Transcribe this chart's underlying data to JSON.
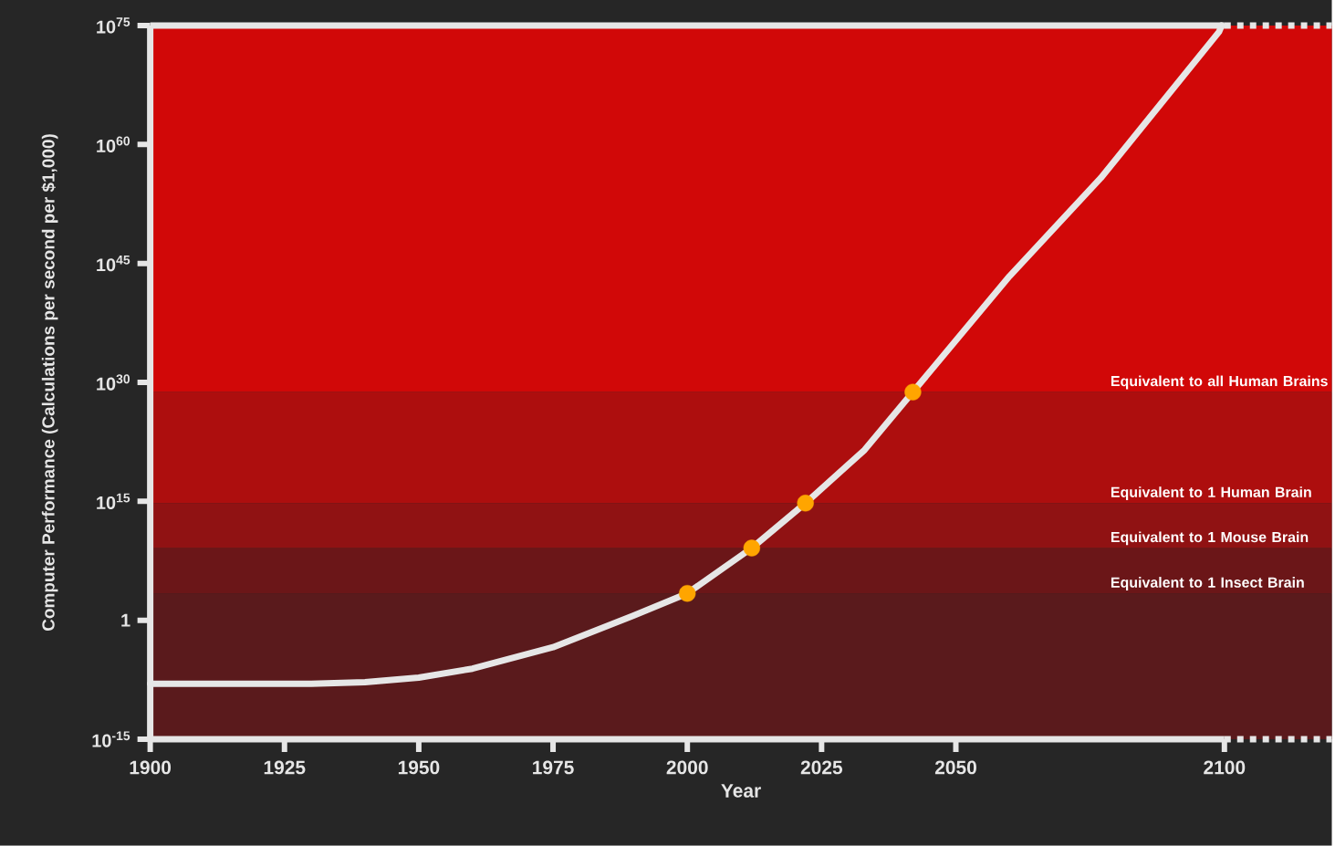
{
  "chart_data": {
    "type": "line",
    "xlabel": "Year",
    "ylabel": "Computer Performance (Calculations per second per $1,000)",
    "xlim": [
      1900,
      2120
    ],
    "ylim": [
      1e-15,
      1e+75
    ],
    "log": "y",
    "xticks": [
      1900,
      1925,
      1950,
      1975,
      2000,
      2025,
      2050,
      2100
    ],
    "yticks": [
      {
        "value": 1e-15,
        "label": "10$^{-15}$"
      },
      {
        "value": 1,
        "label": "1"
      },
      {
        "value": 1000000000000000.0,
        "label": "10$^{15}$"
      },
      {
        "value": 1e+30,
        "label": "10$^{30}$"
      },
      {
        "value": 1e+45,
        "label": "10$^{45}$"
      },
      {
        "value": 1e+60,
        "label": "10$^{60}$"
      },
      {
        "value": 1e+75,
        "label": "10$^{75}$"
      }
    ],
    "series": [
      {
        "color": "#e6e6e6",
        "marker": "none",
        "x": [
          1900,
          1930,
          1940,
          1950,
          1960,
          1975,
          1990,
          2000,
          2012,
          2022,
          2033,
          2042,
          2060,
          2077,
          2099,
          2099.5
        ],
        "values": [
          1e-08,
          1e-08,
          1.6e-08,
          6e-08,
          8e-07,
          0.0004,
          4,
          2500,
          1300000000.0,
          600000000000000.0,
          3e+21,
          6e+28,
          2.5e+43,
          6e+55,
          1.6e+74,
          1e+75
        ]
      },
      {
        "type": "scatter",
        "color": "#ffa500",
        "marker": "circle",
        "x": [
          2000,
          2012,
          2022,
          2042
        ],
        "values": [
          2500,
          1300000000.0,
          600000000000000.0,
          6e+28
        ]
      }
    ],
    "bands": [
      {
        "axis": "y",
        "from": 1e-15,
        "to": 2500,
        "color": "#5a1a1c"
      },
      {
        "axis": "y",
        "from": 2500,
        "to": 1300000000.0,
        "color": "#6b1618",
        "label": "Equivalent to 1 Insect Brain"
      },
      {
        "axis": "y",
        "from": 1300000000.0,
        "to": 600000000000000.0,
        "color": "#901213",
        "label": "Equivalent to 1 Mouse Brain"
      },
      {
        "axis": "y",
        "from": 600000000000000.0,
        "to": 6e+28,
        "color": "#ad0e0e",
        "label": "Equivalent to 1 Human Brain"
      },
      {
        "axis": "y",
        "from": 6e+28,
        "to": 1e+75,
        "color": "#d10808",
        "label": "Equivalent to all Human Brains"
      }
    ]
  }
}
